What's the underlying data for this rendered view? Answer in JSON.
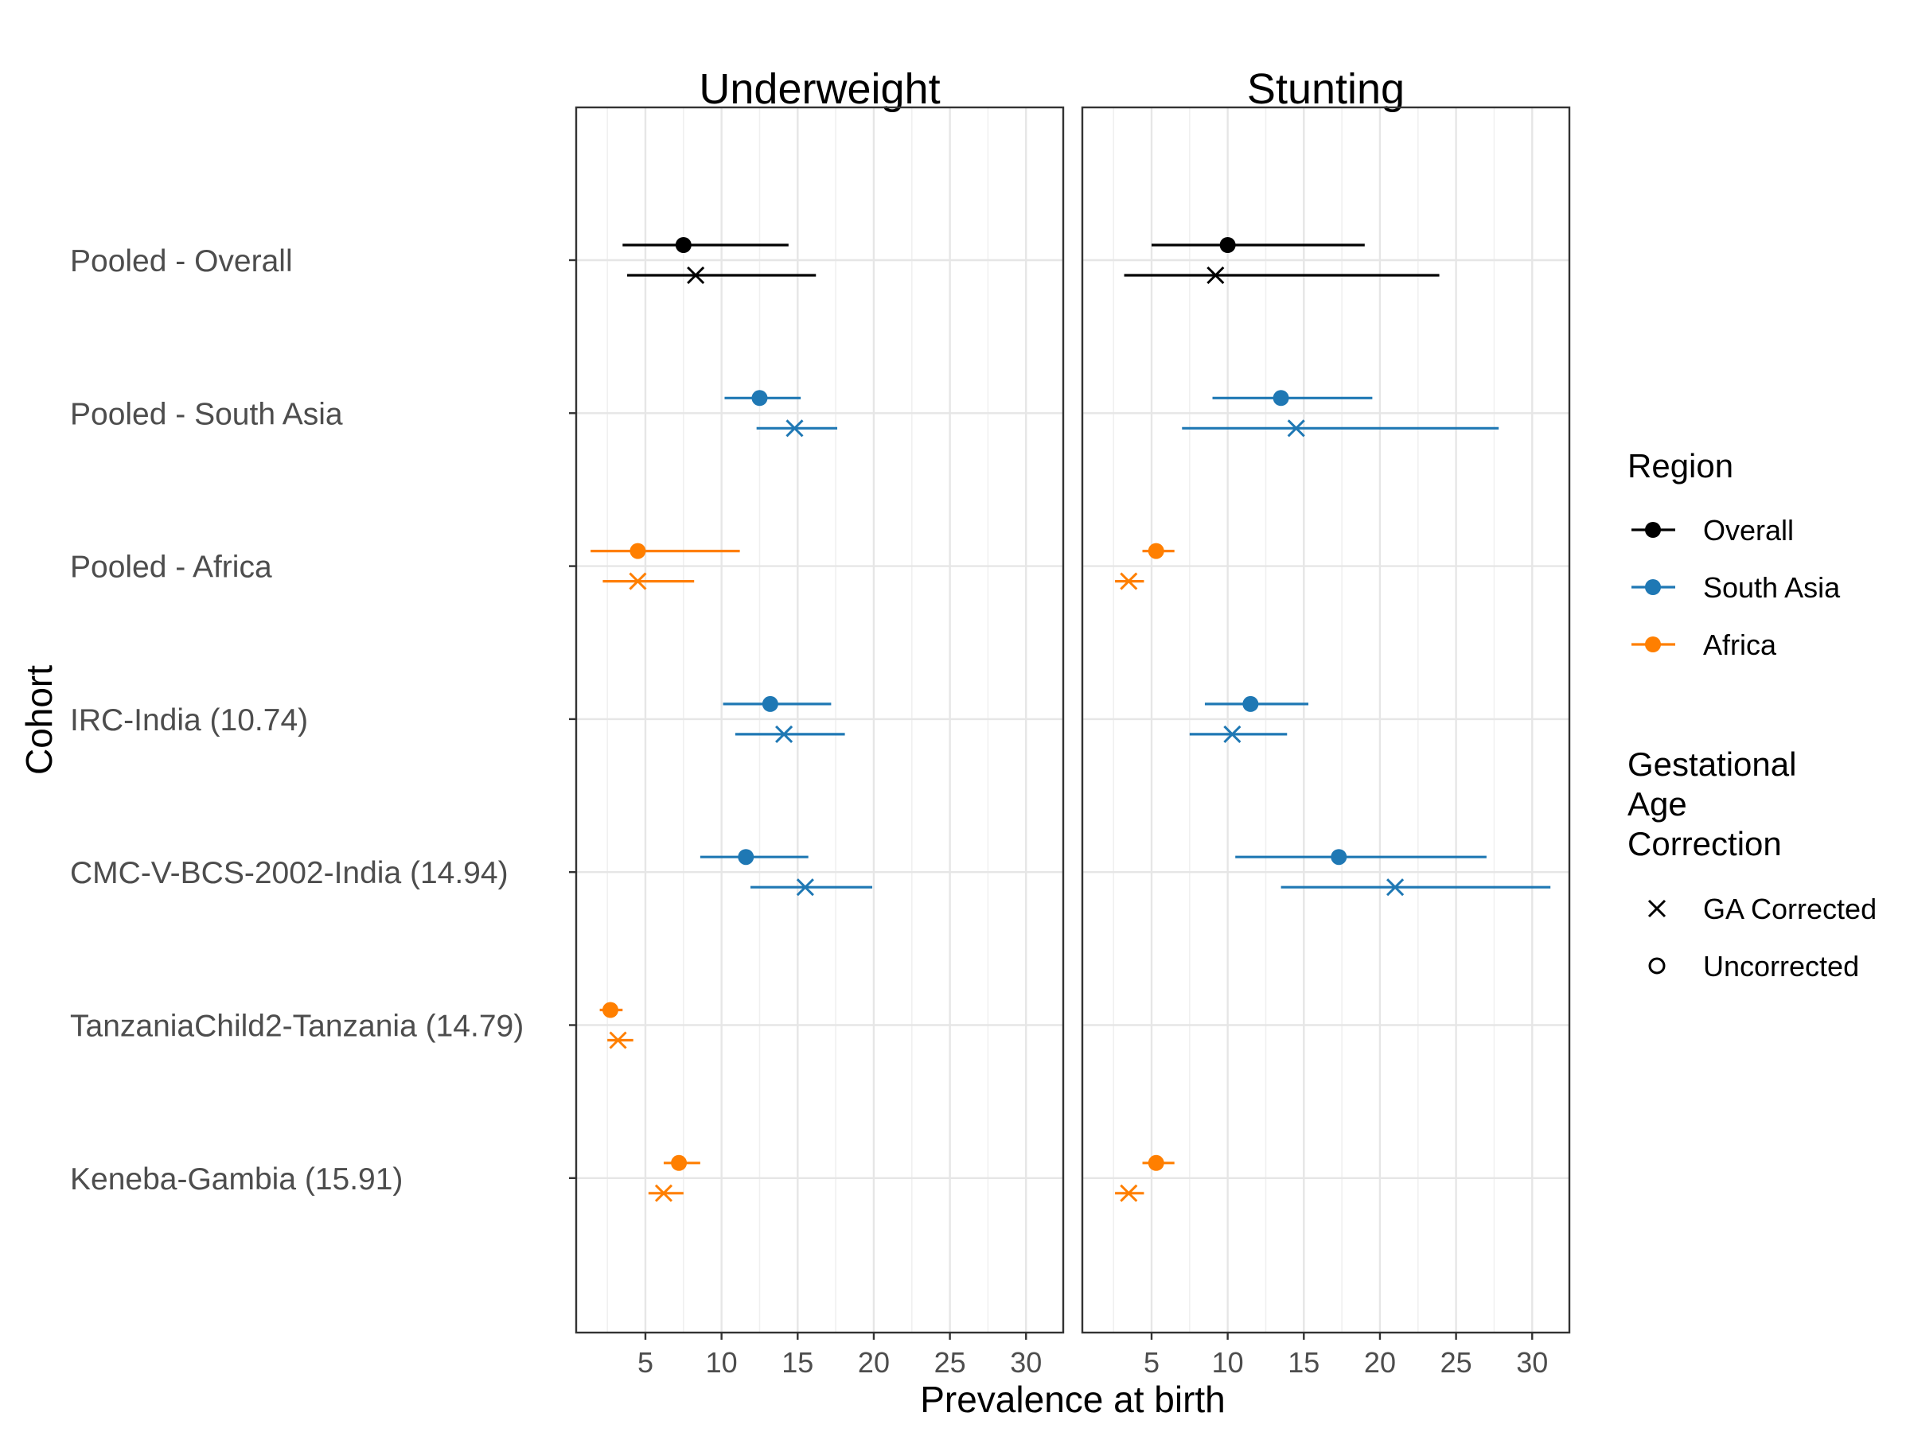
{
  "chart_data": {
    "type": "scatter",
    "subtype": "forest-plot (point estimate with interval)",
    "xlabel": "Prevalence at birth",
    "ylabel": "Cohort",
    "xlim": [
      0,
      33
    ],
    "xticks": [
      5,
      10,
      15,
      20,
      25,
      30
    ],
    "grid": true,
    "legend_position": "right",
    "categories": [
      "Pooled - Overall",
      "Pooled - South Asia",
      "Pooled - Africa",
      "IRC-India (10.74)",
      "CMC-V-BCS-2002-India (14.94)",
      "TanzaniaChild2-Tanzania (14.79)",
      "Keneba-Gambia (15.91)"
    ],
    "region_colors": {
      "Overall": "#000000",
      "South Asia": "#1f78b4",
      "Africa": "#ff7f00"
    },
    "legend": {
      "region": {
        "title": "Region",
        "items": [
          "Overall",
          "South Asia",
          "Africa"
        ]
      },
      "correction": {
        "title_lines": [
          "Gestational",
          "Age",
          "Correction"
        ],
        "items": [
          {
            "label": "GA Corrected",
            "shape": "cross"
          },
          {
            "label": "Uncorrected",
            "shape": "circle"
          }
        ]
      }
    },
    "panels": [
      {
        "title": "Underweight",
        "series": [
          {
            "cohort": "Pooled - Overall",
            "region": "Overall",
            "correction": "Uncorrected",
            "est": 7.5,
            "lo": 3.5,
            "hi": 14.4
          },
          {
            "cohort": "Pooled - Overall",
            "region": "Overall",
            "correction": "GA Corrected",
            "est": 8.3,
            "lo": 3.8,
            "hi": 16.2
          },
          {
            "cohort": "Pooled - South Asia",
            "region": "South Asia",
            "correction": "Uncorrected",
            "est": 12.5,
            "lo": 10.2,
            "hi": 15.2
          },
          {
            "cohort": "Pooled - South Asia",
            "region": "South Asia",
            "correction": "GA Corrected",
            "est": 14.8,
            "lo": 12.3,
            "hi": 17.6
          },
          {
            "cohort": "Pooled - Africa",
            "region": "Africa",
            "correction": "Uncorrected",
            "est": 4.5,
            "lo": 1.4,
            "hi": 11.2
          },
          {
            "cohort": "Pooled - Africa",
            "region": "Africa",
            "correction": "GA Corrected",
            "est": 4.5,
            "lo": 2.2,
            "hi": 8.2
          },
          {
            "cohort": "IRC-India (10.74)",
            "region": "South Asia",
            "correction": "Uncorrected",
            "est": 13.2,
            "lo": 10.1,
            "hi": 17.2
          },
          {
            "cohort": "IRC-India (10.74)",
            "region": "South Asia",
            "correction": "GA Corrected",
            "est": 14.1,
            "lo": 10.9,
            "hi": 18.1
          },
          {
            "cohort": "CMC-V-BCS-2002-India (14.94)",
            "region": "South Asia",
            "correction": "Uncorrected",
            "est": 11.6,
            "lo": 8.6,
            "hi": 15.7
          },
          {
            "cohort": "CMC-V-BCS-2002-India (14.94)",
            "region": "South Asia",
            "correction": "GA Corrected",
            "est": 15.5,
            "lo": 11.9,
            "hi": 19.9
          },
          {
            "cohort": "TanzaniaChild2-Tanzania (14.79)",
            "region": "Africa",
            "correction": "Uncorrected",
            "est": 2.7,
            "lo": 2.0,
            "hi": 3.5
          },
          {
            "cohort": "TanzaniaChild2-Tanzania (14.79)",
            "region": "Africa",
            "correction": "GA Corrected",
            "est": 3.2,
            "lo": 2.5,
            "hi": 4.2
          },
          {
            "cohort": "Keneba-Gambia (15.91)",
            "region": "Africa",
            "correction": "Uncorrected",
            "est": 7.2,
            "lo": 6.2,
            "hi": 8.6
          },
          {
            "cohort": "Keneba-Gambia (15.91)",
            "region": "Africa",
            "correction": "GA Corrected",
            "est": 6.2,
            "lo": 5.2,
            "hi": 7.5
          }
        ]
      },
      {
        "title": "Stunting",
        "series": [
          {
            "cohort": "Pooled - Overall",
            "region": "Overall",
            "correction": "Uncorrected",
            "est": 10.0,
            "lo": 5.0,
            "hi": 19.0
          },
          {
            "cohort": "Pooled - Overall",
            "region": "Overall",
            "correction": "GA Corrected",
            "est": 9.2,
            "lo": 3.2,
            "hi": 23.9
          },
          {
            "cohort": "Pooled - South Asia",
            "region": "South Asia",
            "correction": "Uncorrected",
            "est": 13.5,
            "lo": 9.0,
            "hi": 19.5
          },
          {
            "cohort": "Pooled - South Asia",
            "region": "South Asia",
            "correction": "GA Corrected",
            "est": 14.5,
            "lo": 7.0,
            "hi": 27.8
          },
          {
            "cohort": "Pooled - Africa",
            "region": "Africa",
            "correction": "Uncorrected",
            "est": 5.3,
            "lo": 4.4,
            "hi": 6.5
          },
          {
            "cohort": "Pooled - Africa",
            "region": "Africa",
            "correction": "GA Corrected",
            "est": 3.5,
            "lo": 2.6,
            "hi": 4.5
          },
          {
            "cohort": "IRC-India (10.74)",
            "region": "South Asia",
            "correction": "Uncorrected",
            "est": 11.5,
            "lo": 8.5,
            "hi": 15.3
          },
          {
            "cohort": "IRC-India (10.74)",
            "region": "South Asia",
            "correction": "GA Corrected",
            "est": 10.3,
            "lo": 7.5,
            "hi": 13.9
          },
          {
            "cohort": "CMC-V-BCS-2002-India (14.94)",
            "region": "South Asia",
            "correction": "Uncorrected",
            "est": 17.3,
            "lo": 10.5,
            "hi": 27.0
          },
          {
            "cohort": "CMC-V-BCS-2002-India (14.94)",
            "region": "South Asia",
            "correction": "GA Corrected",
            "est": 21.0,
            "lo": 13.5,
            "hi": 31.2
          },
          {
            "cohort": "TanzaniaChild2-Tanzania (14.79)",
            "region": "Africa",
            "correction": "Uncorrected",
            "est": null,
            "lo": null,
            "hi": null
          },
          {
            "cohort": "TanzaniaChild2-Tanzania (14.79)",
            "region": "Africa",
            "correction": "GA Corrected",
            "est": null,
            "lo": null,
            "hi": null
          },
          {
            "cohort": "Keneba-Gambia (15.91)",
            "region": "Africa",
            "correction": "Uncorrected",
            "est": 5.3,
            "lo": 4.4,
            "hi": 6.5
          },
          {
            "cohort": "Keneba-Gambia (15.91)",
            "region": "Africa",
            "correction": "GA Corrected",
            "est": 3.5,
            "lo": 2.6,
            "hi": 4.5
          }
        ]
      }
    ]
  }
}
